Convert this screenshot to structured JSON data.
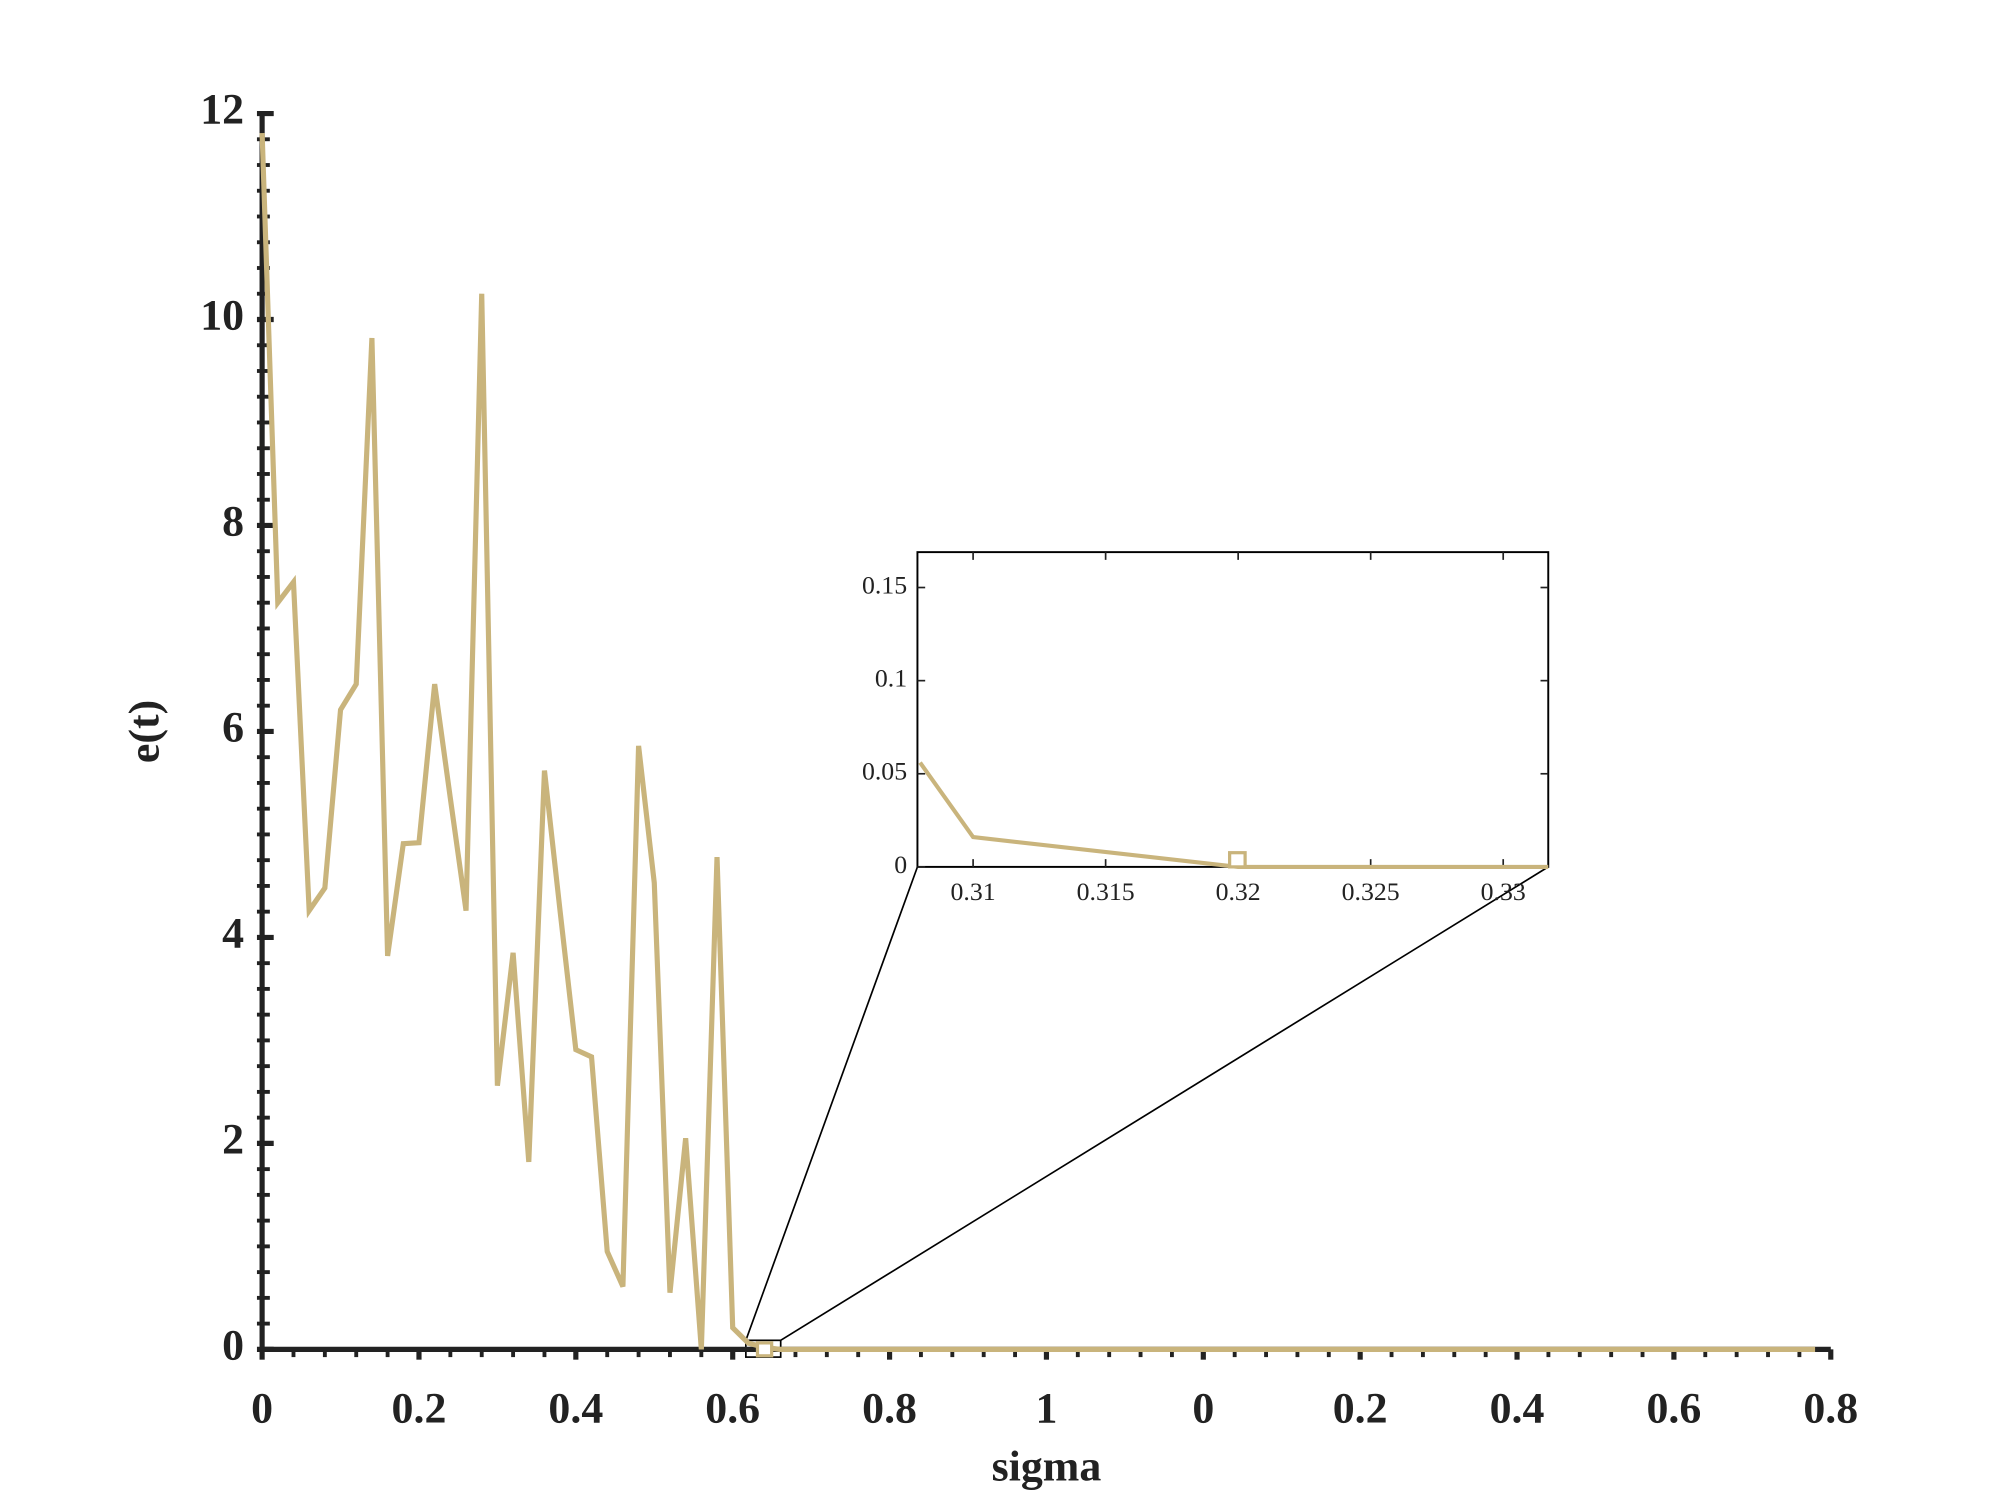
{
  "chart_data": [
    {
      "type": "line",
      "x_label": "sigma",
      "y_label": "e(t)",
      "color": "#c9b47c",
      "x": [
        0,
        0.02,
        0.04,
        0.06,
        0.08,
        0.1,
        0.12,
        0.14,
        0.16,
        0.18,
        0.2,
        0.22,
        0.24,
        0.26,
        0.28,
        0.3,
        0.32,
        0.34,
        0.36,
        0.38,
        0.4,
        0.42,
        0.44,
        0.46,
        0.48,
        0.5,
        0.52,
        0.54,
        0.56,
        0.58,
        0.6,
        0.62,
        0.64,
        0.66,
        1.98
      ],
      "values": [
        11.81,
        7.25,
        7.45,
        4.26,
        4.48,
        6.21,
        6.46,
        9.82,
        3.82,
        4.91,
        4.92,
        6.46,
        5.35,
        4.26,
        10.25,
        2.56,
        3.85,
        1.82,
        5.62,
        4.25,
        2.91,
        2.84,
        0.95,
        0.61,
        5.86,
        4.53,
        0.55,
        2.05,
        0,
        4.78,
        0.21,
        0.06,
        0.02,
        0,
        0
      ],
      "xlim": [
        0,
        2
      ],
      "ylim": [
        0,
        12
      ],
      "xticks": [
        0,
        0.2,
        0.4,
        0.6,
        0.8,
        1,
        {
          "value": 1.2,
          "label": "0"
        },
        {
          "value": 1.4,
          "label": "0.2"
        },
        {
          "value": 1.6,
          "label": "0.4"
        },
        {
          "value": 1.8,
          "label": "0.6"
        },
        {
          "value": 2.0,
          "label": "0.8"
        }
      ],
      "yticks": [
        0,
        2,
        4,
        6,
        8,
        10,
        12
      ]
    },
    {
      "type": "line",
      "color": "#c9b47c",
      "x": [
        0.308,
        0.31,
        0.32,
        0.3317
      ],
      "values": [
        0.056,
        0.016,
        0,
        0
      ],
      "xlim": [
        0.3079,
        0.3317
      ],
      "ylim": [
        0,
        0.169
      ],
      "xticks": [
        0.31,
        0.315,
        0.32,
        0.325,
        0.33
      ],
      "yticks": [
        0,
        0.05,
        0.1,
        0.15
      ]
    }
  ]
}
